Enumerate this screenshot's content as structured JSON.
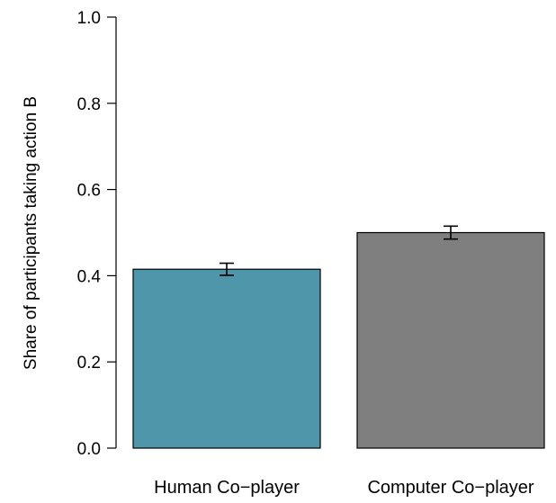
{
  "chart_data": {
    "type": "bar",
    "categories": [
      "Human Co−player",
      "Computer Co−player"
    ],
    "series": [
      {
        "values": [
          0.415,
          0.5
        ],
        "error_low": [
          0.401,
          0.485
        ],
        "error_high": [
          0.429,
          0.515
        ],
        "colors": [
          "#4f96ab",
          "#7f7f7f"
        ]
      }
    ],
    "ylabel": "Share of participants taking action B",
    "xlabel": "",
    "ylim": [
      0,
      1
    ],
    "yticks": [
      "0.0",
      "0.2",
      "0.4",
      "0.6",
      "0.8",
      "1.0"
    ],
    "grid": false,
    "legend": "none"
  }
}
